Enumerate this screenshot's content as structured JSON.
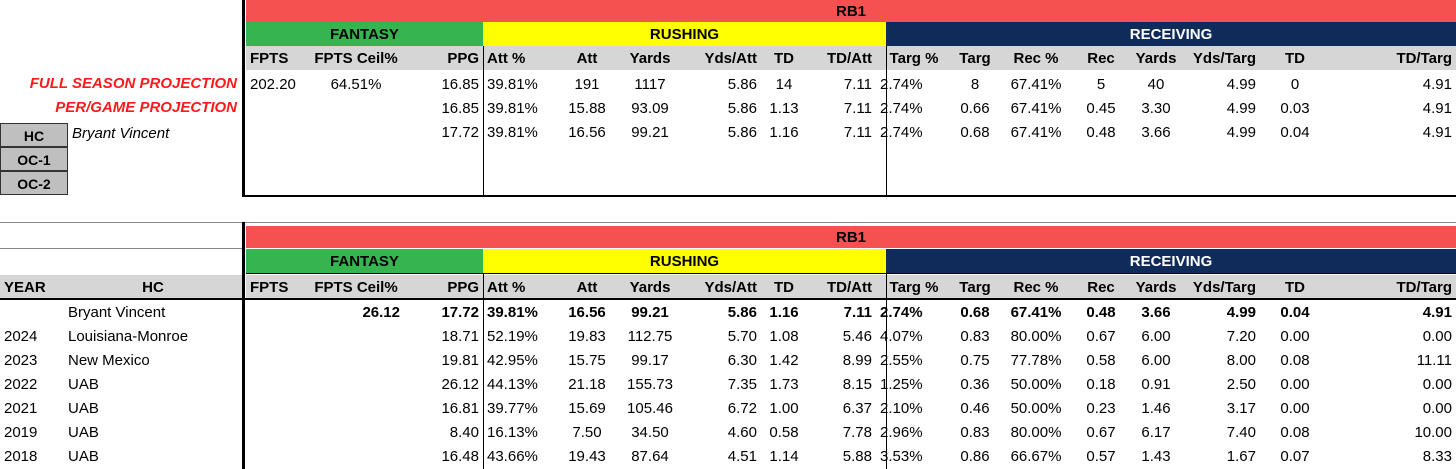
{
  "top": {
    "position": "RB1",
    "groups": {
      "fantasy": "FANTASY",
      "rushing": "RUSHING",
      "receiving": "RECEIVING"
    },
    "columns": [
      "FPTS",
      "FPTS Ceil%",
      "PPG",
      "Att %",
      "Att",
      "Yards",
      "Yds/Att",
      "TD",
      "TD/Att",
      "Targ %",
      "Targ",
      "Rec %",
      "Rec",
      "Yards",
      "Yds/Targ",
      "TD",
      "TD/Targ"
    ],
    "rows": [
      {
        "label": "FULL SEASON PROJECTION",
        "cells": [
          "202.20",
          "64.51%",
          "16.85",
          "39.81%",
          "191",
          "1117",
          "5.86",
          "14",
          "7.11",
          "2.74%",
          "8",
          "67.41%",
          "5",
          "40",
          "4.99",
          "0",
          "4.91"
        ]
      },
      {
        "label": "PER/GAME PROJECTION",
        "cells": [
          "",
          "",
          "16.85",
          "39.81%",
          "15.88",
          "93.09",
          "5.86",
          "1.13",
          "7.11",
          "2.74%",
          "0.66",
          "67.41%",
          "0.45",
          "3.30",
          "4.99",
          "0.03",
          "4.91"
        ]
      },
      {
        "label": "Bryant Vincent",
        "cells": [
          "",
          "",
          "17.72",
          "39.81%",
          "16.56",
          "99.21",
          "5.86",
          "1.16",
          "7.11",
          "2.74%",
          "0.68",
          "67.41%",
          "0.48",
          "3.66",
          "4.99",
          "0.04",
          "4.91"
        ]
      }
    ],
    "coach_boxes": [
      "HC",
      "OC-1",
      "OC-2"
    ]
  },
  "bottom": {
    "position": "RB1",
    "groups": {
      "fantasy": "FANTASY",
      "rushing": "RUSHING",
      "receiving": "RECEIVING"
    },
    "left_headers": [
      "YEAR",
      "HC"
    ],
    "columns": [
      "FPTS",
      "FPTS Ceil%",
      "PPG",
      "Att %",
      "Att",
      "Yards",
      "Yds/Att",
      "TD",
      "TD/Att",
      "Targ %",
      "Targ",
      "Rec %",
      "Rec",
      "Yards",
      "Yds/Targ",
      "TD",
      "TD/Targ"
    ],
    "rows": [
      {
        "year": "",
        "hc": "Bryant Vincent",
        "bold": true,
        "cells": [
          "",
          "26.12",
          "17.72",
          "39.81%",
          "16.56",
          "99.21",
          "5.86",
          "1.16",
          "7.11",
          "2.74%",
          "0.68",
          "67.41%",
          "0.48",
          "3.66",
          "4.99",
          "0.04",
          "4.91"
        ]
      },
      {
        "year": "2024",
        "hc": "Louisiana-Monroe",
        "cells": [
          "",
          "",
          "18.71",
          "52.19%",
          "19.83",
          "112.75",
          "5.70",
          "1.08",
          "5.46",
          "4.07%",
          "0.83",
          "80.00%",
          "0.67",
          "6.00",
          "7.20",
          "0.00",
          "0.00"
        ]
      },
      {
        "year": "2023",
        "hc": "New Mexico",
        "cells": [
          "",
          "",
          "19.81",
          "42.95%",
          "15.75",
          "99.17",
          "6.30",
          "1.42",
          "8.99",
          "2.55%",
          "0.75",
          "77.78%",
          "0.58",
          "6.00",
          "8.00",
          "0.08",
          "11.11"
        ]
      },
      {
        "year": "2022",
        "hc": "UAB",
        "cells": [
          "",
          "",
          "26.12",
          "44.13%",
          "21.18",
          "155.73",
          "7.35",
          "1.73",
          "8.15",
          "1.25%",
          "0.36",
          "50.00%",
          "0.18",
          "0.91",
          "2.50",
          "0.00",
          "0.00"
        ]
      },
      {
        "year": "2021",
        "hc": "UAB",
        "cells": [
          "",
          "",
          "16.81",
          "39.77%",
          "15.69",
          "105.46",
          "6.72",
          "1.00",
          "6.37",
          "2.10%",
          "0.46",
          "50.00%",
          "0.23",
          "1.46",
          "3.17",
          "0.00",
          "0.00"
        ]
      },
      {
        "year": "2019",
        "hc": "UAB",
        "cells": [
          "",
          "",
          "8.40",
          "16.13%",
          "7.50",
          "34.50",
          "4.60",
          "0.58",
          "7.78",
          "2.96%",
          "0.83",
          "80.00%",
          "0.67",
          "6.17",
          "7.40",
          "0.08",
          "10.00"
        ]
      },
      {
        "year": "2018",
        "hc": "UAB",
        "cells": [
          "",
          "",
          "16.48",
          "43.66%",
          "19.43",
          "87.64",
          "4.51",
          "1.14",
          "5.88",
          "3.53%",
          "0.86",
          "66.67%",
          "0.57",
          "1.43",
          "1.67",
          "0.07",
          "8.33"
        ]
      }
    ]
  }
}
